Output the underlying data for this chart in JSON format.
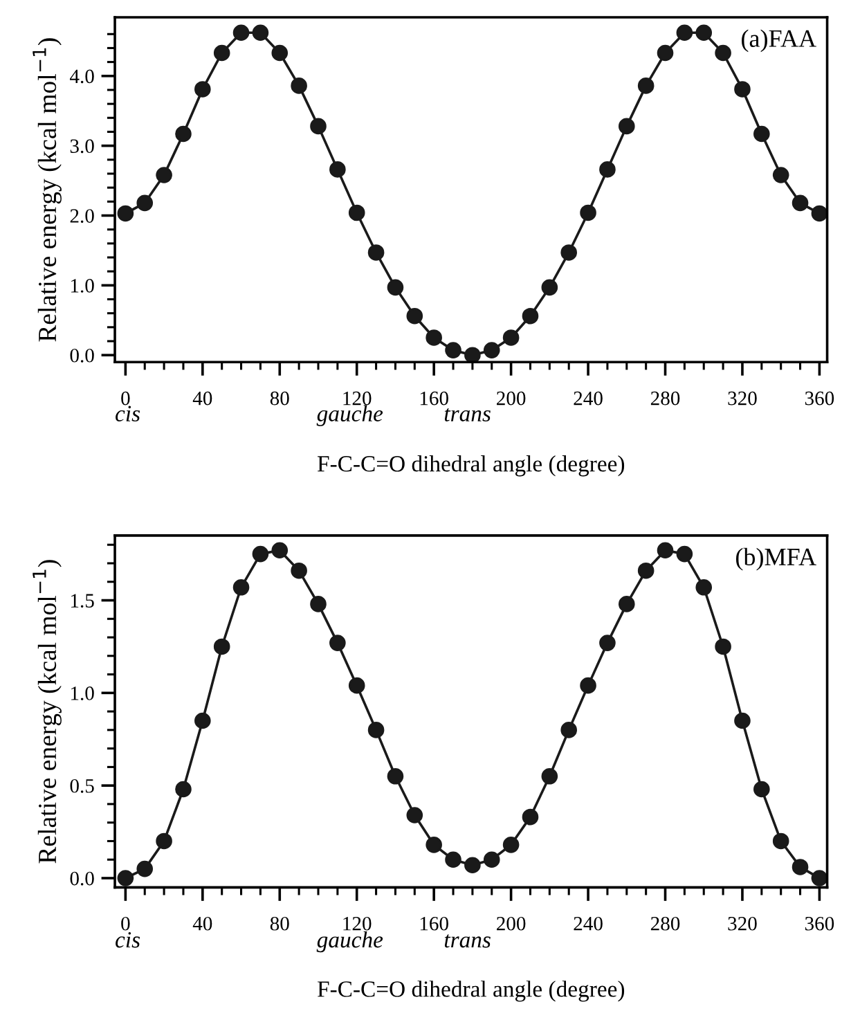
{
  "chart_data": [
    {
      "type": "line",
      "title": "(a)FAA",
      "xlabel": "F-C-C=O dihedral angle (degree)",
      "ylabel": "Relative energy (kcal mol$^{−1}$)",
      "x": [
        0,
        10,
        20,
        30,
        40,
        50,
        60,
        70,
        80,
        90,
        100,
        110,
        120,
        130,
        140,
        150,
        160,
        170,
        180,
        190,
        200,
        210,
        220,
        230,
        240,
        250,
        260,
        270,
        280,
        290,
        300,
        310,
        320,
        330,
        340,
        350,
        360
      ],
      "series": [
        {
          "color": "#1a1a1a",
          "values": [
            2.03,
            2.18,
            2.58,
            3.17,
            3.81,
            4.33,
            4.62,
            4.62,
            4.33,
            3.86,
            3.28,
            2.66,
            2.04,
            1.47,
            0.97,
            0.56,
            0.25,
            0.07,
            0.0,
            0.07,
            0.25,
            0.56,
            0.97,
            1.47,
            2.04,
            2.66,
            3.28,
            3.86,
            4.33,
            4.62,
            4.62,
            4.33,
            3.81,
            3.17,
            2.58,
            2.18,
            2.03
          ]
        }
      ],
      "marker": "circle",
      "line_style": "solid",
      "xlim": [
        -5.5,
        364
      ],
      "ylim": [
        -0.1,
        4.84
      ],
      "xticks": [
        0,
        {
          "value": 10,
          "label": null
        },
        {
          "value": 20,
          "label": null
        },
        {
          "value": 30,
          "label": null
        },
        40,
        {
          "value": 50,
          "label": null
        },
        {
          "value": 60,
          "label": null
        },
        {
          "value": 70,
          "label": null
        },
        80,
        {
          "value": 90,
          "label": null
        },
        {
          "value": 100,
          "label": null
        },
        {
          "value": 110,
          "label": null
        },
        120,
        {
          "value": 130,
          "label": null
        },
        {
          "value": 140,
          "label": null
        },
        {
          "value": 150,
          "label": null
        },
        160,
        {
          "value": 170,
          "label": null
        },
        {
          "value": 180,
          "label": null
        },
        {
          "value": 190,
          "label": null
        },
        200,
        {
          "value": 210,
          "label": null
        },
        {
          "value": 220,
          "label": null
        },
        {
          "value": 230,
          "label": null
        },
        240,
        {
          "value": 250,
          "label": null
        },
        {
          "value": 260,
          "label": null
        },
        {
          "value": 270,
          "label": null
        },
        280,
        {
          "value": 290,
          "label": null
        },
        {
          "value": 300,
          "label": null
        },
        {
          "value": 310,
          "label": null
        },
        320,
        {
          "value": 330,
          "label": null
        },
        {
          "value": 340,
          "label": null
        },
        {
          "value": 350,
          "label": null
        },
        360
      ],
      "yticks": [
        {
          "value": 0,
          "label": "0.0"
        },
        {
          "value": 0.2,
          "label": null
        },
        {
          "value": 0.4,
          "label": null
        },
        {
          "value": 0.6,
          "label": null
        },
        {
          "value": 0.8,
          "label": null
        },
        {
          "value": 1,
          "label": "1.0"
        },
        {
          "value": 1.2,
          "label": null
        },
        {
          "value": 1.4,
          "label": null
        },
        {
          "value": 1.6,
          "label": null
        },
        {
          "value": 1.8,
          "label": null
        },
        {
          "value": 2,
          "label": "2.0"
        },
        {
          "value": 2.2,
          "label": null
        },
        {
          "value": 2.4,
          "label": null
        },
        {
          "value": 2.6,
          "label": null
        },
        {
          "value": 2.8,
          "label": null
        },
        {
          "value": 3,
          "label": "3.0"
        },
        {
          "value": 3.2,
          "label": null
        },
        {
          "value": 3.4,
          "label": null
        },
        {
          "value": 3.6,
          "label": null
        },
        {
          "value": 3.8,
          "label": null
        },
        {
          "value": 4,
          "label": "4.0"
        },
        {
          "value": 4.2,
          "label": null
        },
        {
          "value": 4.4,
          "label": null
        },
        {
          "value": 4.6,
          "label": null
        }
      ],
      "annotations": [
        "cis",
        "gauche",
        "trans"
      ]
    },
    {
      "type": "line",
      "title": "(b)MFA",
      "xlabel": "F-C-C=O dihedral angle (degree)",
      "ylabel": "Relative energy (kcal mol$^{−1}$)",
      "x": [
        0,
        10,
        20,
        30,
        40,
        50,
        60,
        70,
        80,
        90,
        100,
        110,
        120,
        130,
        140,
        150,
        160,
        170,
        180,
        190,
        200,
        210,
        220,
        230,
        240,
        250,
        260,
        270,
        280,
        290,
        300,
        310,
        320,
        330,
        340,
        350,
        360
      ],
      "series": [
        {
          "color": "#1a1a1a",
          "values": [
            0.0,
            0.05,
            0.2,
            0.48,
            0.85,
            1.25,
            1.57,
            1.75,
            1.77,
            1.66,
            1.48,
            1.27,
            1.04,
            0.8,
            0.55,
            0.34,
            0.18,
            0.1,
            0.07,
            0.1,
            0.18,
            0.33,
            0.55,
            0.8,
            1.04,
            1.27,
            1.48,
            1.66,
            1.77,
            1.75,
            1.57,
            1.25,
            0.85,
            0.48,
            0.2,
            0.06,
            0.0
          ]
        }
      ],
      "marker": "circle",
      "line_style": "solid",
      "xlim": [
        -5.5,
        364
      ],
      "ylim": [
        -0.05,
        1.85
      ],
      "xticks": [
        0,
        {
          "value": 10,
          "label": null
        },
        {
          "value": 20,
          "label": null
        },
        {
          "value": 30,
          "label": null
        },
        40,
        {
          "value": 50,
          "label": null
        },
        {
          "value": 60,
          "label": null
        },
        {
          "value": 70,
          "label": null
        },
        80,
        {
          "value": 90,
          "label": null
        },
        {
          "value": 100,
          "label": null
        },
        {
          "value": 110,
          "label": null
        },
        120,
        {
          "value": 130,
          "label": null
        },
        {
          "value": 140,
          "label": null
        },
        {
          "value": 150,
          "label": null
        },
        160,
        {
          "value": 170,
          "label": null
        },
        {
          "value": 180,
          "label": null
        },
        {
          "value": 190,
          "label": null
        },
        200,
        {
          "value": 210,
          "label": null
        },
        {
          "value": 220,
          "label": null
        },
        {
          "value": 230,
          "label": null
        },
        240,
        {
          "value": 250,
          "label": null
        },
        {
          "value": 260,
          "label": null
        },
        {
          "value": 270,
          "label": null
        },
        280,
        {
          "value": 290,
          "label": null
        },
        {
          "value": 300,
          "label": null
        },
        {
          "value": 310,
          "label": null
        },
        320,
        {
          "value": 330,
          "label": null
        },
        {
          "value": 340,
          "label": null
        },
        {
          "value": 350,
          "label": null
        },
        360
      ],
      "yticks": [
        {
          "value": 0,
          "label": "0.0"
        },
        {
          "value": 0.1,
          "label": null
        },
        {
          "value": 0.2,
          "label": null
        },
        {
          "value": 0.3,
          "label": null
        },
        {
          "value": 0.4,
          "label": null
        },
        {
          "value": 0.5,
          "label": "0.5"
        },
        {
          "value": 0.6,
          "label": null
        },
        {
          "value": 0.7,
          "label": null
        },
        {
          "value": 0.8,
          "label": null
        },
        {
          "value": 0.9,
          "label": null
        },
        {
          "value": 1,
          "label": "1.0"
        },
        {
          "value": 1.1,
          "label": null
        },
        {
          "value": 1.2,
          "label": null
        },
        {
          "value": 1.3,
          "label": null
        },
        {
          "value": 1.4,
          "label": null
        },
        {
          "value": 1.5,
          "label": "1.5"
        },
        {
          "value": 1.6,
          "label": null
        },
        {
          "value": 1.7,
          "label": null
        },
        {
          "value": 1.8,
          "label": null
        }
      ],
      "annotations": [
        "cis",
        "gauche",
        "trans"
      ]
    }
  ]
}
